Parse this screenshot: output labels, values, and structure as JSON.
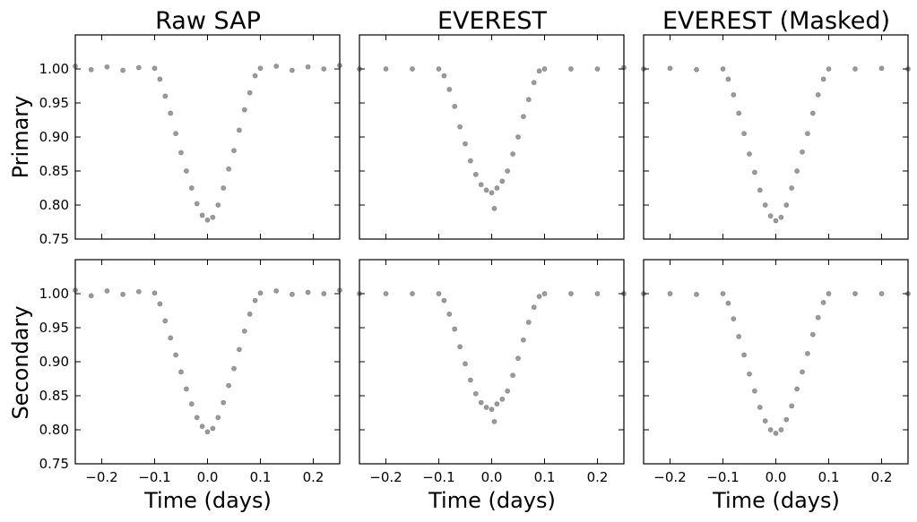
{
  "figure": {
    "titles": [
      "Raw SAP",
      "EVEREST",
      "EVEREST (Masked)"
    ],
    "row_labels": [
      "Primary",
      "Secondary"
    ],
    "xlabel": "Time (days)"
  },
  "chart_data": [
    {
      "id": "primary-raw-sap",
      "type": "scatter",
      "title": "Raw SAP",
      "ylabel": "Primary",
      "xlabel": "",
      "xlim": [
        -0.25,
        0.25
      ],
      "ylim": [
        0.75,
        1.05
      ],
      "xticks": [
        -0.2,
        -0.1,
        0.0,
        0.1,
        0.2
      ],
      "yticks": [
        0.75,
        0.8,
        0.85,
        0.9,
        0.95,
        1.0
      ],
      "xtick_labels": [
        "−0.2",
        "−0.1",
        "0.0",
        "0.1",
        "0.2"
      ],
      "ytick_labels": [
        "0.75",
        "0.80",
        "0.85",
        "0.90",
        "0.95",
        "1.00"
      ],
      "show_xticklabels": false,
      "show_yticklabels": true,
      "x": [
        -0.25,
        -0.22,
        -0.19,
        -0.16,
        -0.13,
        -0.1,
        -0.09,
        -0.08,
        -0.07,
        -0.06,
        -0.05,
        -0.04,
        -0.03,
        -0.02,
        -0.01,
        0.0,
        0.01,
        0.02,
        0.03,
        0.04,
        0.05,
        0.06,
        0.07,
        0.08,
        0.09,
        0.1,
        0.13,
        0.16,
        0.19,
        0.22,
        0.25
      ],
      "y": [
        1.004,
        0.999,
        1.003,
        0.998,
        1.002,
        1.001,
        0.985,
        0.96,
        0.935,
        0.905,
        0.877,
        0.85,
        0.825,
        0.802,
        0.785,
        0.778,
        0.782,
        0.8,
        0.825,
        0.853,
        0.88,
        0.91,
        0.94,
        0.965,
        0.99,
        1.001,
        1.004,
        0.998,
        1.003,
        1.0,
        1.005
      ]
    },
    {
      "id": "primary-everest",
      "type": "scatter",
      "title": "EVEREST",
      "ylabel": "",
      "xlabel": "",
      "xlim": [
        -0.25,
        0.25
      ],
      "ylim": [
        0.75,
        1.05
      ],
      "xticks": [
        -0.2,
        -0.1,
        0.0,
        0.1,
        0.2
      ],
      "yticks": [
        0.75,
        0.8,
        0.85,
        0.9,
        0.95,
        1.0
      ],
      "xtick_labels": [
        "−0.2",
        "−0.1",
        "0.0",
        "0.1",
        "0.2"
      ],
      "ytick_labels": [
        "0.75",
        "0.80",
        "0.85",
        "0.90",
        "0.95",
        "1.00"
      ],
      "show_xticklabels": false,
      "show_yticklabels": false,
      "x": [
        -0.25,
        -0.2,
        -0.15,
        -0.1,
        -0.09,
        -0.08,
        -0.07,
        -0.06,
        -0.05,
        -0.04,
        -0.03,
        -0.02,
        -0.01,
        0.0,
        0.005,
        0.01,
        0.02,
        0.03,
        0.04,
        0.05,
        0.06,
        0.07,
        0.08,
        0.09,
        0.1,
        0.15,
        0.2,
        0.25
      ],
      "y": [
        1.0,
        1.0,
        1.0,
        1.0,
        0.99,
        0.97,
        0.945,
        0.915,
        0.89,
        0.865,
        0.845,
        0.83,
        0.822,
        0.818,
        0.795,
        0.825,
        0.835,
        0.85,
        0.875,
        0.9,
        0.93,
        0.955,
        0.98,
        0.997,
        1.0,
        1.0,
        1.0,
        1.002
      ]
    },
    {
      "id": "primary-everest-masked",
      "type": "scatter",
      "title": "EVEREST (Masked)",
      "ylabel": "",
      "xlabel": "",
      "xlim": [
        -0.25,
        0.25
      ],
      "ylim": [
        0.75,
        1.05
      ],
      "xticks": [
        -0.2,
        -0.1,
        0.0,
        0.1,
        0.2
      ],
      "yticks": [
        0.75,
        0.8,
        0.85,
        0.9,
        0.95,
        1.0
      ],
      "xtick_labels": [
        "−0.2",
        "−0.1",
        "0.0",
        "0.1",
        "0.2"
      ],
      "ytick_labels": [
        "0.75",
        "0.80",
        "0.85",
        "0.90",
        "0.95",
        "1.00"
      ],
      "show_xticklabels": false,
      "show_yticklabels": false,
      "x": [
        -0.25,
        -0.2,
        -0.15,
        -0.1,
        -0.09,
        -0.08,
        -0.07,
        -0.06,
        -0.05,
        -0.04,
        -0.03,
        -0.02,
        -0.01,
        0.0,
        0.01,
        0.02,
        0.03,
        0.04,
        0.05,
        0.06,
        0.07,
        0.08,
        0.09,
        0.1,
        0.15,
        0.2,
        0.25
      ],
      "y": [
        1.0,
        1.001,
        0.999,
        1.0,
        0.985,
        0.962,
        0.935,
        0.905,
        0.875,
        0.848,
        0.822,
        0.8,
        0.784,
        0.777,
        0.782,
        0.8,
        0.825,
        0.85,
        0.878,
        0.905,
        0.935,
        0.962,
        0.985,
        1.0,
        1.0,
        1.001,
        1.0
      ]
    },
    {
      "id": "secondary-raw-sap",
      "type": "scatter",
      "title": "",
      "ylabel": "Secondary",
      "xlabel": "Time (days)",
      "xlim": [
        -0.25,
        0.25
      ],
      "ylim": [
        0.75,
        1.05
      ],
      "xticks": [
        -0.2,
        -0.1,
        0.0,
        0.1,
        0.2
      ],
      "yticks": [
        0.75,
        0.8,
        0.85,
        0.9,
        0.95,
        1.0
      ],
      "xtick_labels": [
        "−0.2",
        "−0.1",
        "0.0",
        "0.1",
        "0.2"
      ],
      "ytick_labels": [
        "0.75",
        "0.80",
        "0.85",
        "0.90",
        "0.95",
        "1.00"
      ],
      "show_xticklabels": true,
      "show_yticklabels": true,
      "x": [
        -0.25,
        -0.22,
        -0.19,
        -0.16,
        -0.13,
        -0.1,
        -0.09,
        -0.08,
        -0.07,
        -0.06,
        -0.05,
        -0.04,
        -0.03,
        -0.02,
        -0.01,
        0.0,
        0.01,
        0.02,
        0.03,
        0.04,
        0.05,
        0.06,
        0.07,
        0.08,
        0.09,
        0.1,
        0.13,
        0.16,
        0.19,
        0.22,
        0.25
      ],
      "y": [
        1.005,
        0.997,
        1.004,
        0.999,
        1.003,
        1.001,
        0.985,
        0.96,
        0.935,
        0.91,
        0.885,
        0.86,
        0.838,
        0.818,
        0.805,
        0.797,
        0.802,
        0.818,
        0.84,
        0.865,
        0.89,
        0.918,
        0.945,
        0.97,
        0.99,
        1.001,
        1.004,
        0.999,
        1.002,
        1.0,
        1.005
      ]
    },
    {
      "id": "secondary-everest",
      "type": "scatter",
      "title": "",
      "ylabel": "",
      "xlabel": "Time (days)",
      "xlim": [
        -0.25,
        0.25
      ],
      "ylim": [
        0.75,
        1.05
      ],
      "xticks": [
        -0.2,
        -0.1,
        0.0,
        0.1,
        0.2
      ],
      "yticks": [
        0.75,
        0.8,
        0.85,
        0.9,
        0.95,
        1.0
      ],
      "xtick_labels": [
        "−0.2",
        "−0.1",
        "0.0",
        "0.1",
        "0.2"
      ],
      "ytick_labels": [
        "0.75",
        "0.80",
        "0.85",
        "0.90",
        "0.95",
        "1.00"
      ],
      "show_xticklabels": true,
      "show_yticklabels": false,
      "x": [
        -0.25,
        -0.2,
        -0.15,
        -0.1,
        -0.09,
        -0.08,
        -0.07,
        -0.06,
        -0.05,
        -0.04,
        -0.03,
        -0.02,
        -0.01,
        0.0,
        0.005,
        0.01,
        0.02,
        0.03,
        0.04,
        0.05,
        0.06,
        0.07,
        0.08,
        0.09,
        0.1,
        0.15,
        0.2,
        0.25
      ],
      "y": [
        1.0,
        1.0,
        1.0,
        1.0,
        0.99,
        0.97,
        0.948,
        0.922,
        0.897,
        0.873,
        0.853,
        0.84,
        0.833,
        0.83,
        0.812,
        0.838,
        0.845,
        0.857,
        0.88,
        0.905,
        0.932,
        0.958,
        0.98,
        0.996,
        1.0,
        1.0,
        1.0,
        1.0
      ]
    },
    {
      "id": "secondary-everest-masked",
      "type": "scatter",
      "title": "",
      "ylabel": "",
      "xlabel": "Time (days)",
      "xlim": [
        -0.25,
        0.25
      ],
      "ylim": [
        0.75,
        1.05
      ],
      "xticks": [
        -0.2,
        -0.1,
        0.0,
        0.1,
        0.2
      ],
      "yticks": [
        0.75,
        0.8,
        0.85,
        0.9,
        0.95,
        1.0
      ],
      "xtick_labels": [
        "−0.2",
        "−0.1",
        "0.0",
        "0.1",
        "0.2"
      ],
      "ytick_labels": [
        "0.75",
        "0.80",
        "0.85",
        "0.90",
        "0.95",
        "1.00"
      ],
      "show_xticklabels": true,
      "show_yticklabels": false,
      "x": [
        -0.25,
        -0.2,
        -0.15,
        -0.1,
        -0.09,
        -0.08,
        -0.07,
        -0.06,
        -0.05,
        -0.04,
        -0.03,
        -0.02,
        -0.01,
        0.0,
        0.01,
        0.02,
        0.03,
        0.04,
        0.05,
        0.06,
        0.07,
        0.08,
        0.09,
        0.1,
        0.15,
        0.2,
        0.25
      ],
      "y": [
        1.0,
        1.0,
        0.999,
        1.0,
        0.986,
        0.963,
        0.937,
        0.91,
        0.882,
        0.857,
        0.833,
        0.813,
        0.8,
        0.795,
        0.8,
        0.815,
        0.835,
        0.86,
        0.885,
        0.912,
        0.94,
        0.965,
        0.987,
        1.0,
        1.0,
        1.0,
        1.0
      ]
    }
  ]
}
